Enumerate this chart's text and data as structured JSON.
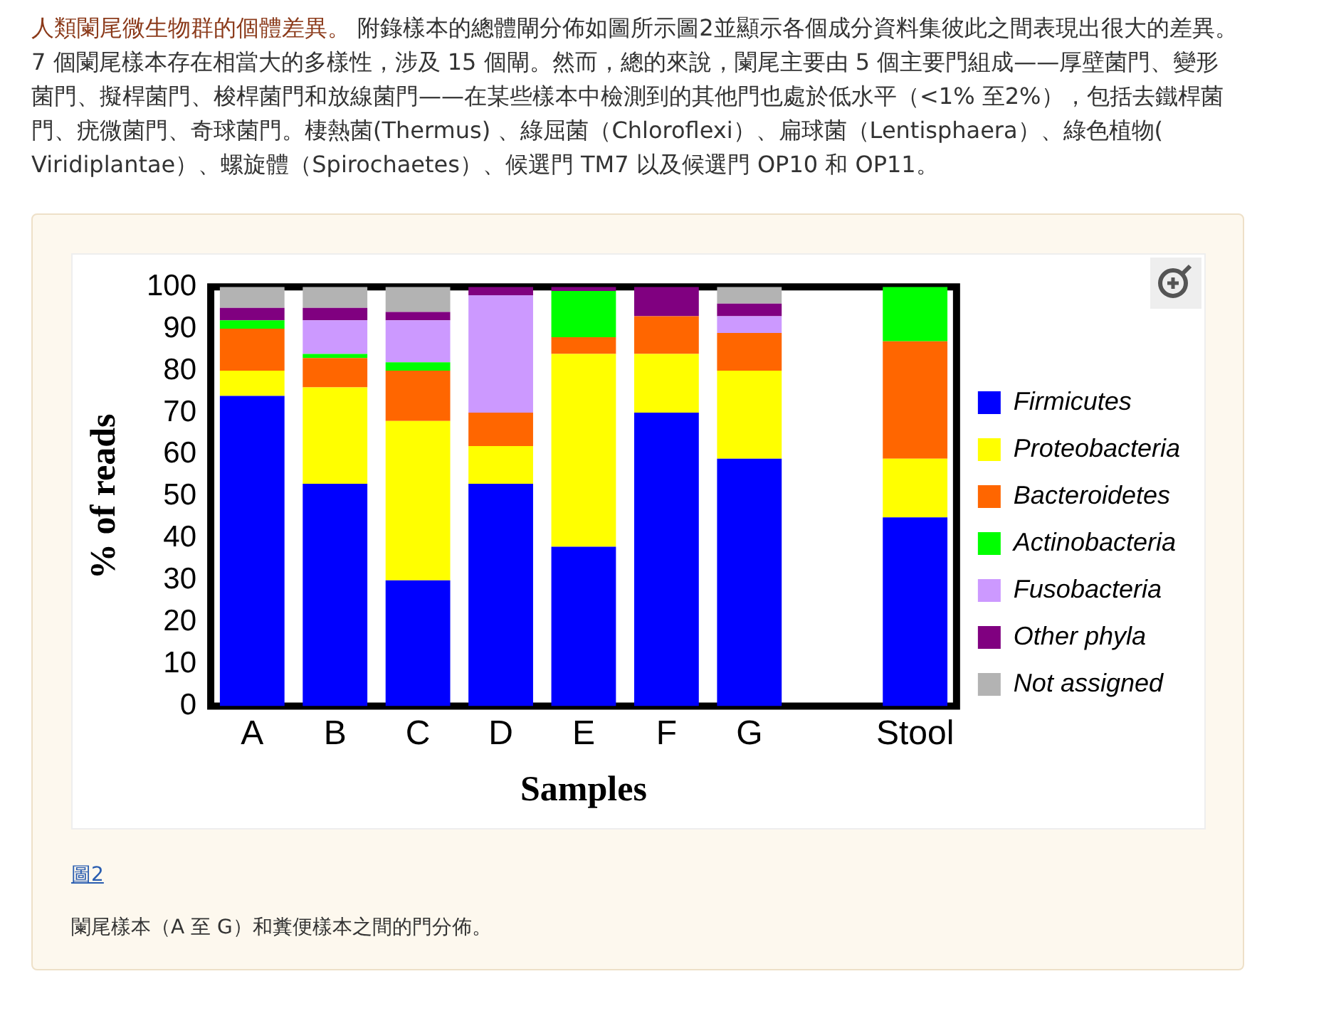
{
  "chart_data": {
    "type": "bar",
    "stacked": true,
    "title": "人類闌尾微生物群的個體差異。",
    "annotations": [
      "附錄樣本的總體閘分佈如圖所示圖2並顯示各個成分資料集彼此之間表現出很大的差異。7 個闌尾樣本存在相當大的多樣性，涉及 15 個閘。然而，總的來說，闌尾主要由 5 個主要門組成——厚壁菌門、變形菌門、擬桿菌門、梭桿菌門和放線菌門——在某些樣本中檢測到的其他門也處於低水平（<1% 至2%），包括去鐵桿菌門、疣微菌門、奇球菌門。棲熱菌(Thermus) 、綠屈菌（Chloroflexi）、扁球菌（Lentisphaera）、綠色植物( Viridiplantae）、螺旋體（Spirochaetes）、候選門 TM7 以及候選門 OP10 和 OP11。",
      "圖2",
      "闌尾樣本（A 至 G）和糞便樣本之間的門分佈。"
    ],
    "xlabel": "Samples",
    "ylabel": "% of reads",
    "categories": [
      "A",
      "B",
      "C",
      "D",
      "E",
      "F",
      "G",
      null,
      "Stool"
    ],
    "series": [
      {
        "name": "Firmicutes",
        "color": "#0000ff",
        "values": [
          74,
          53,
          30,
          53,
          38,
          70,
          59,
          null,
          45
        ]
      },
      {
        "name": "Proteobacteria",
        "color": "#ffff00",
        "values": [
          6,
          23,
          38,
          9,
          46,
          14,
          21,
          null,
          14
        ]
      },
      {
        "name": "Bacteroidetes",
        "color": "#ff6600",
        "values": [
          10,
          7,
          12,
          8,
          4,
          9,
          9,
          null,
          28
        ]
      },
      {
        "name": "Actinobacteria",
        "color": "#00ff00",
        "values": [
          2,
          1,
          2,
          0,
          11,
          0,
          0,
          null,
          13
        ]
      },
      {
        "name": "Fusobacteria",
        "color": "#cc99ff",
        "values": [
          0,
          8,
          10,
          28,
          0,
          0,
          4,
          null,
          0
        ]
      },
      {
        "name": "Other phyla",
        "color": "#800080",
        "values": [
          3,
          3,
          2,
          2,
          1,
          7,
          3,
          null,
          0
        ]
      },
      {
        "name": "Not assigned",
        "color": "#b3b3b3",
        "values": [
          5,
          5,
          6,
          0,
          0,
          0,
          4,
          null,
          0
        ]
      }
    ],
    "ylim": [
      0,
      100
    ],
    "yticks": [
      0,
      10,
      20,
      30,
      40,
      50,
      60,
      70,
      80,
      90,
      100
    ],
    "grid": false,
    "legend": "right"
  }
}
